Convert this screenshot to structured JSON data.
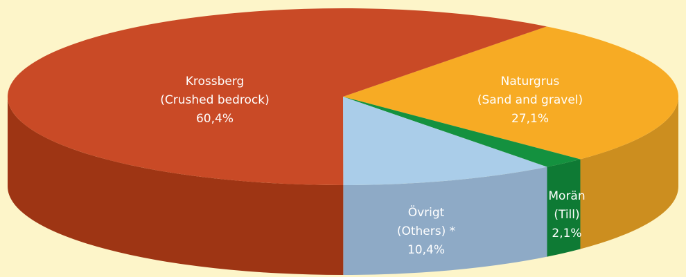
{
  "chart_data": {
    "type": "pie3d",
    "categories": [
      "Naturgrus",
      "Morän",
      "Övrigt",
      "Krossberg"
    ],
    "category_translations": [
      "(Sand and gravel)",
      "(Till)",
      "(Others) *",
      "(Crushed bedrock)"
    ],
    "values": [
      27.1,
      2.1,
      10.4,
      60.4
    ],
    "value_labels": [
      "27,1%",
      "2,1%",
      "10,4%",
      "60,4%"
    ],
    "colors": [
      "#f7ab24",
      "#14913f",
      "#aacde9",
      "#c94a26"
    ],
    "side_colors": [
      "#cc8e1f",
      "#0e7a34",
      "#8eaac6",
      "#9e3514"
    ]
  }
}
